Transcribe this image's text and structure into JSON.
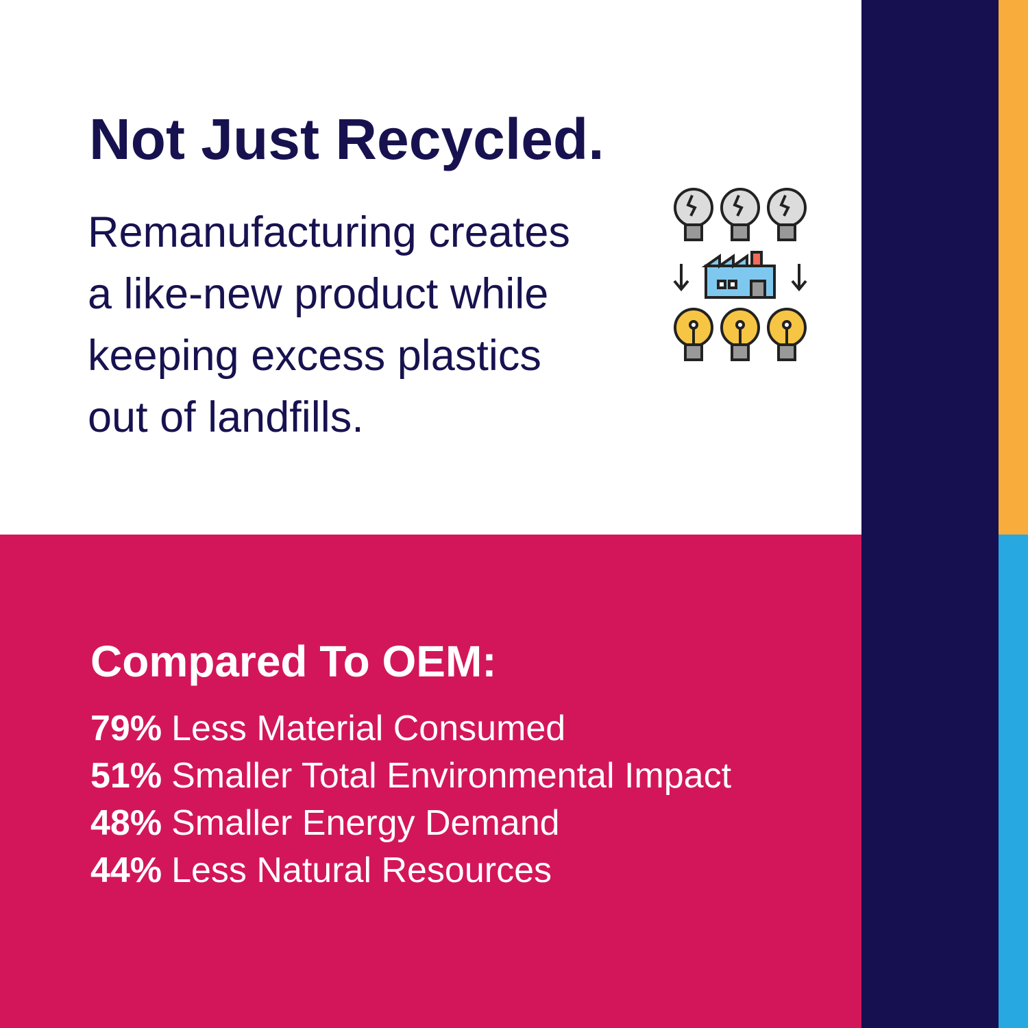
{
  "header": {
    "title": "Not Just Recycled."
  },
  "body": {
    "lines": [
      "Remanufacturing creates",
      "a like-new product while",
      "keeping excess plastics",
      "out of landfills."
    ]
  },
  "comparison": {
    "title": "Compared To OEM:",
    "items": [
      {
        "stat": "79%",
        "text": "Less Material Consumed"
      },
      {
        "stat": "51%",
        "text": "Smaller Total Environmental Impact"
      },
      {
        "stat": "48%",
        "text": "Smaller Energy Demand"
      },
      {
        "stat": "44%",
        "text": "Less Natural Resources"
      }
    ]
  }
}
